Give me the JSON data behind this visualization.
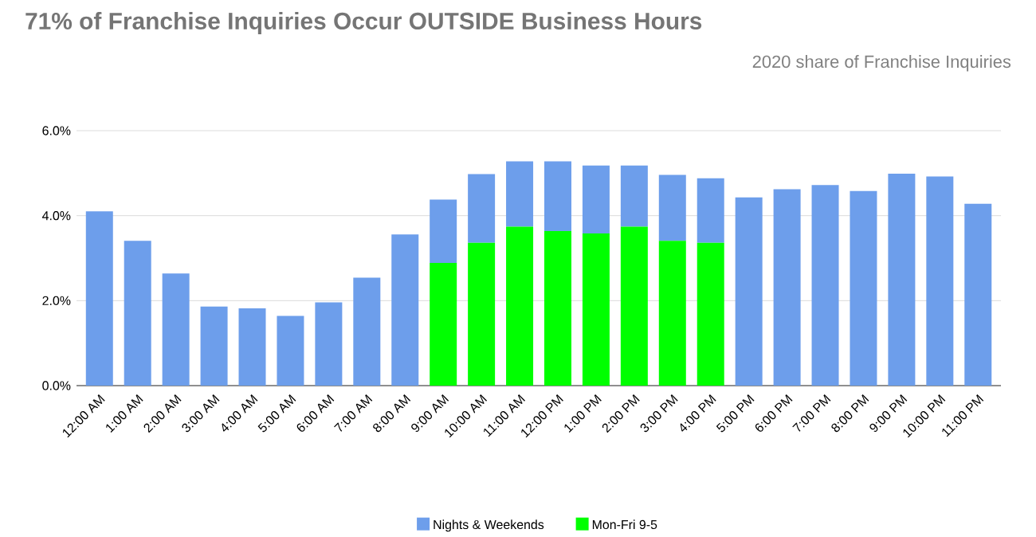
{
  "chart_data": {
    "type": "bar",
    "stacked": true,
    "title": "71% of Franchise Inquiries Occur OUTSIDE Business Hours",
    "subtitle": "2020 share of Franchise Inquiries",
    "categories": [
      "12:00 AM",
      "1:00 AM",
      "2:00 AM",
      "3:00 AM",
      "4:00 AM",
      "5:00 AM",
      "6:00 AM",
      "7:00 AM",
      "8:00 AM",
      "9:00 AM",
      "10:00 AM",
      "11:00 AM",
      "12:00 PM",
      "1:00 PM",
      "2:00 PM",
      "3:00 PM",
      "4:00 PM",
      "5:00 PM",
      "6:00 PM",
      "7:00 PM",
      "8:00 PM",
      "9:00 PM",
      "10:00 PM",
      "11:00 PM"
    ],
    "series": [
      {
        "name": "Mon-Fri 9-5",
        "color": "#00ff00",
        "values": [
          0,
          0,
          0,
          0,
          0,
          0,
          0,
          0,
          0,
          2.89,
          3.36,
          3.74,
          3.64,
          3.58,
          3.74,
          3.41,
          3.36,
          0,
          0,
          0,
          0,
          0,
          0,
          0
        ]
      },
      {
        "name": "Nights & Weekends",
        "color": "#6d9eeb",
        "values": [
          4.1,
          3.41,
          2.64,
          1.86,
          1.82,
          1.64,
          1.96,
          2.54,
          3.56,
          1.49,
          1.62,
          1.54,
          1.64,
          1.6,
          1.44,
          1.55,
          1.52,
          4.43,
          4.62,
          4.72,
          4.58,
          4.99,
          4.92,
          4.28
        ]
      }
    ],
    "ylim": [
      0,
      6
    ],
    "yticks": [
      {
        "value": 0,
        "label": "0.0%"
      },
      {
        "value": 2,
        "label": "2.0%"
      },
      {
        "value": 4,
        "label": "4.0%"
      },
      {
        "value": 6,
        "label": "6.0%"
      }
    ],
    "grid": "y",
    "legend": "bottom"
  }
}
